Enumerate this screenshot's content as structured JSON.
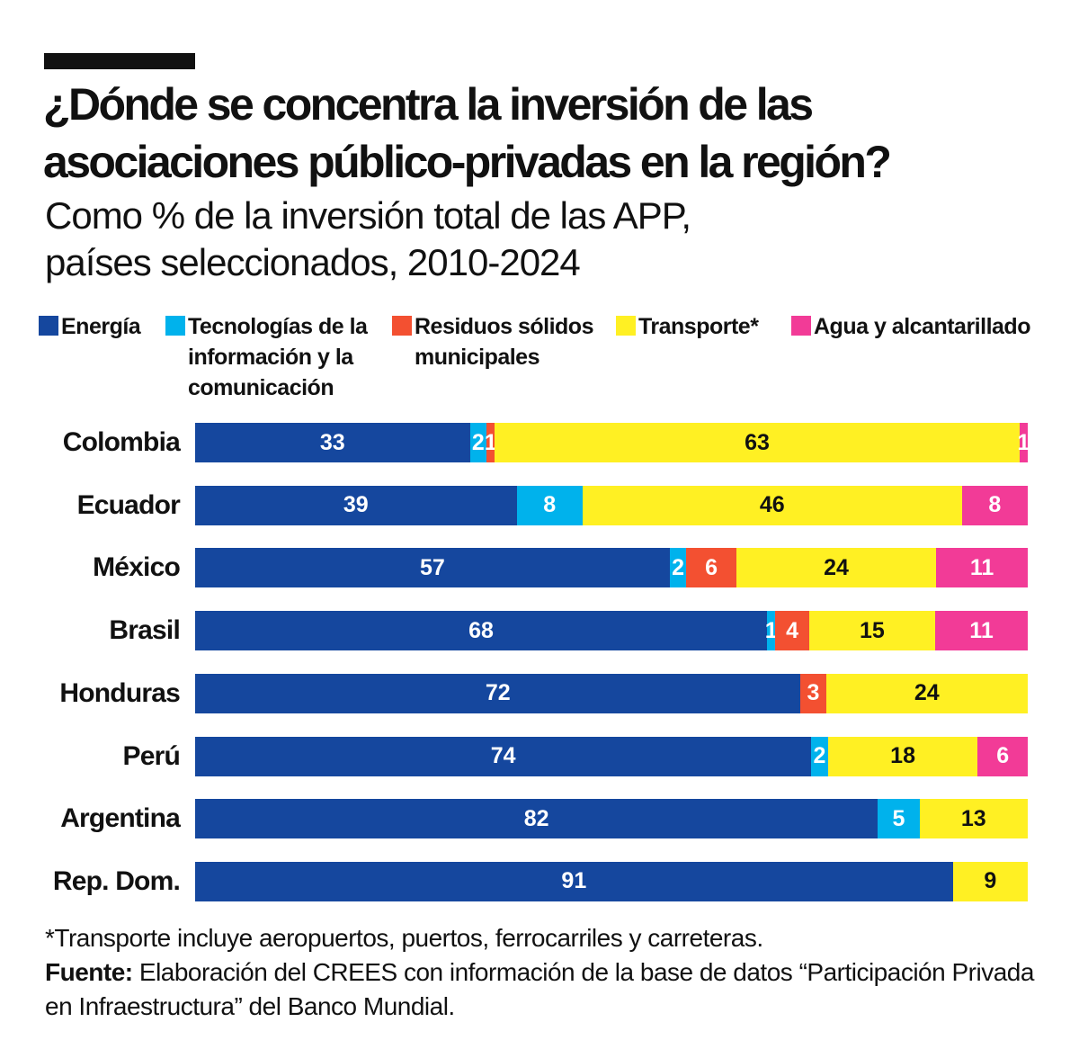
{
  "title": [
    "¿Dónde se concentra la inversión de las",
    "asociaciones público-privadas en la región?"
  ],
  "subtitle": [
    "Como % de la inversión total de las APP,",
    "países seleccionados, 2010-2024"
  ],
  "legend": [
    {
      "label": "Energía",
      "color": "#15479e"
    },
    {
      "label": "Tecnologías de la información y la comunicación",
      "color": "#00b2ec"
    },
    {
      "label": "Residuos sólidos municipales",
      "color": "#f35031"
    },
    {
      "label": "Transporte*",
      "color": "#fff023"
    },
    {
      "label": "Agua y alcantarillado",
      "color": "#f23b97"
    }
  ],
  "chart_data": {
    "type": "bar",
    "orientation": "horizontal",
    "stacked": true,
    "categories": [
      "Colombia",
      "Ecuador",
      "México",
      "Brasil",
      "Honduras",
      "Perú",
      "Argentina",
      "Rep. Dom."
    ],
    "series": [
      {
        "name": "Energía",
        "color": "#15479e",
        "values": [
          33,
          39,
          57,
          68,
          72,
          74,
          82,
          91
        ]
      },
      {
        "name": "Tecnologías de la información y la comunicación",
        "color": "#00b2ec",
        "values": [
          2,
          8,
          2,
          1,
          0,
          2,
          5,
          0
        ]
      },
      {
        "name": "Residuos sólidos municipales",
        "color": "#f35031",
        "values": [
          1,
          0,
          6,
          4,
          3,
          0,
          0,
          0
        ]
      },
      {
        "name": "Transporte*",
        "color": "#fff023",
        "values": [
          63,
          46,
          24,
          15,
          24,
          18,
          13,
          9
        ]
      },
      {
        "name": "Agua y alcantarillado",
        "color": "#f23b97",
        "values": [
          1,
          8,
          11,
          11,
          0,
          6,
          0,
          0
        ]
      }
    ],
    "legend_position": "top",
    "grid": false
  },
  "footnote": "*Transporte incluye aeropuertos, puertos, ferrocarriles y carreteras.",
  "source_label": "Fuente:",
  "source_text": "Elaboración del CREES con información de la base de datos “Participación Privada en Infraestructura” del Banco Mundial."
}
